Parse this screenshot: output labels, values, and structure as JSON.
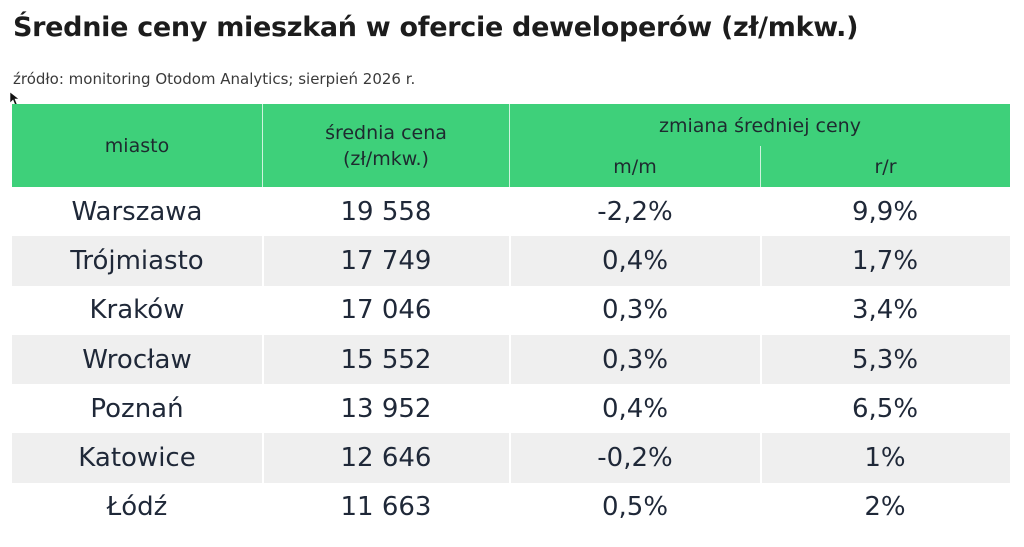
{
  "title": "Średnie ceny mieszkań w ofercie deweloperów (zł/mkw.)",
  "source": "źródło: monitoring Otodom Analytics; sierpień 2026 r.",
  "colors": {
    "header_bg": "#3ed07a",
    "alt_row": "#efefef",
    "text": "#1f2838"
  },
  "chart_data": {
    "type": "table",
    "header": {
      "city": "miasto",
      "price": "średnia cena (zł/mkw.)",
      "change_group": "zmiana średniej ceny",
      "mm": "m/m",
      "rr": "r/r"
    },
    "rows": [
      {
        "city": "Warszawa",
        "price": "19 558",
        "mm": "-2,2%",
        "rr": "9,9%"
      },
      {
        "city": "Trójmiasto",
        "price": "17 749",
        "mm": "0,4%",
        "rr": "1,7%"
      },
      {
        "city": "Kraków",
        "price": "17 046",
        "mm": "0,3%",
        "rr": "3,4%"
      },
      {
        "city": "Wrocław",
        "price": "15 552",
        "mm": "0,3%",
        "rr": "5,3%"
      },
      {
        "city": "Poznań",
        "price": "13 952",
        "mm": "0,4%",
        "rr": "6,5%"
      },
      {
        "city": "Katowice",
        "price": "12 646",
        "mm": "-0,2%",
        "rr": "1%"
      },
      {
        "city": "Łódź",
        "price": "11 663",
        "mm": "0,5%",
        "rr": "2%"
      }
    ]
  }
}
